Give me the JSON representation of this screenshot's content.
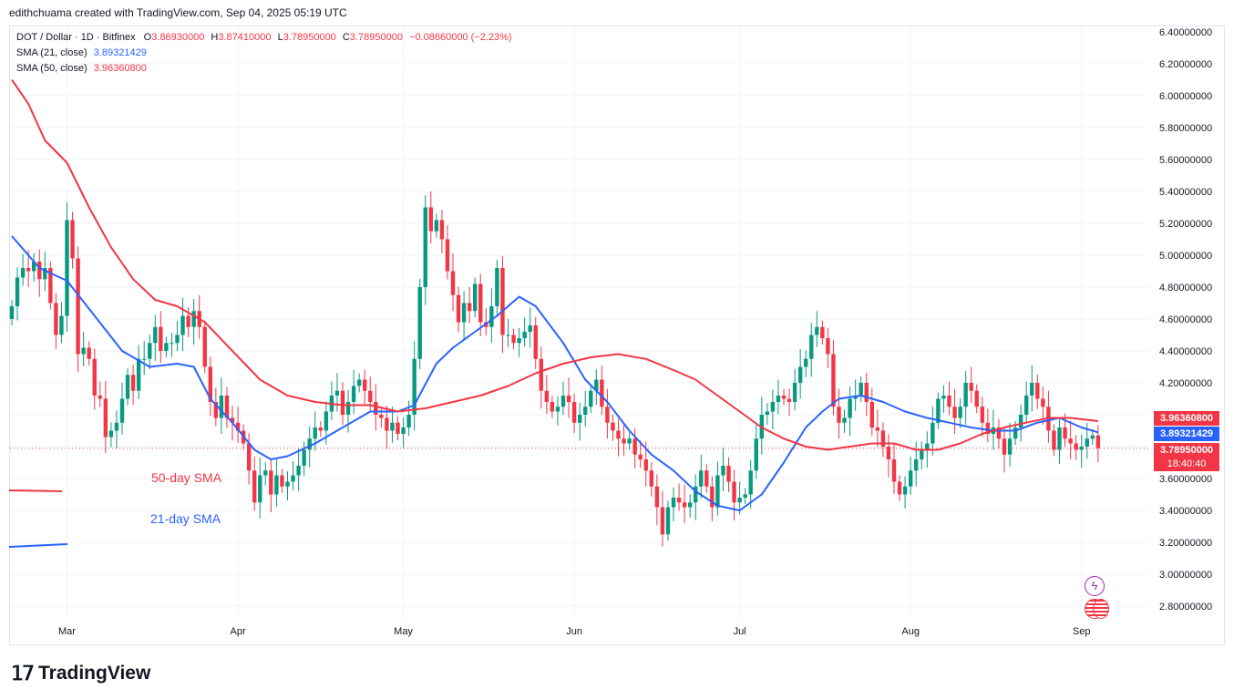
{
  "header": {
    "credit": "edithchuama created with TradingView.com, Sep 04, 2025 05:19 UTC"
  },
  "legend": {
    "symbol": "DOT / Dollar · 1D · Bitfinex",
    "o_label": "O",
    "o": "3.86930000",
    "h_label": "H",
    "h": "3.87410000",
    "l_label": "L",
    "l": "3.78950000",
    "c_label": "C",
    "c": "3.78950000",
    "change": "−0.08660000 (−2.23%)",
    "sma21_label": "SMA (21, close)",
    "sma21": "3.89321429",
    "sma50_label": "SMA (50, close)",
    "sma50": "3.96360800"
  },
  "tags": {
    "sma50": "3.96360800",
    "sma21": "3.89321429",
    "price": "3.78950000",
    "countdown": "18:40:40"
  },
  "annotations": {
    "sma50": "50-day SMA",
    "sma21": "21-day SMA"
  },
  "brand": {
    "name": "TradingView"
  },
  "colors": {
    "up": "#089981",
    "down": "#f23645",
    "sma50": "#f23645",
    "sma21": "#2962ff",
    "sma21_tag": "#2962ff"
  },
  "chart_data": {
    "type": "candlestick",
    "title": "DOT / Dollar · 1D · Bitfinex",
    "ylim": [
      2.7,
      6.48
    ],
    "y_ticks": [
      "6.40000000",
      "6.20000000",
      "6.00000000",
      "5.80000000",
      "5.60000000",
      "5.40000000",
      "5.20000000",
      "5.00000000",
      "4.80000000",
      "4.60000000",
      "4.40000000",
      "4.20000000",
      "4.00000000",
      "3.80000000",
      "3.60000000",
      "3.40000000",
      "3.20000000",
      "3.00000000",
      "2.80000000"
    ],
    "y_tick_values": [
      6.4,
      6.2,
      6.0,
      5.8,
      5.6,
      5.4,
      5.2,
      5.0,
      4.8,
      4.6,
      4.4,
      4.2,
      4.0,
      3.8,
      3.6,
      3.4,
      3.2,
      3.0,
      2.8
    ],
    "x_labels": [
      {
        "label": "Mar",
        "index": 10
      },
      {
        "label": "Apr",
        "index": 41
      },
      {
        "label": "May",
        "index": 71
      },
      {
        "label": "Jun",
        "index": 102
      },
      {
        "label": "Jul",
        "index": 132
      },
      {
        "label": "Aug",
        "index": 163
      },
      {
        "label": "Sep",
        "index": 194
      }
    ],
    "closes": [
      4.68,
      4.86,
      4.92,
      4.9,
      4.96,
      4.85,
      4.92,
      4.7,
      4.5,
      4.62,
      5.22,
      4.98,
      4.38,
      4.42,
      4.35,
      4.12,
      4.1,
      3.86,
      3.9,
      3.95,
      4.1,
      4.25,
      4.15,
      4.35,
      4.35,
      4.45,
      4.55,
      4.4,
      4.45,
      4.45,
      4.5,
      4.62,
      4.55,
      4.65,
      4.55,
      4.3,
      4.08,
      3.98,
      4.12,
      3.98,
      3.95,
      3.9,
      3.82,
      3.65,
      3.45,
      3.62,
      3.65,
      3.5,
      3.62,
      3.55,
      3.58,
      3.62,
      3.68,
      3.78,
      3.85,
      3.92,
      3.9,
      4.02,
      4.12,
      4.15,
      4.0,
      4.08,
      4.18,
      4.22,
      4.15,
      4.08,
      4.0,
      3.98,
      3.9,
      3.95,
      3.88,
      3.92,
      4.0,
      4.35,
      4.8,
      5.3,
      5.15,
      5.22,
      5.1,
      4.9,
      4.75,
      4.58,
      4.7,
      4.65,
      4.82,
      4.58,
      4.55,
      4.68,
      4.92,
      4.5,
      4.5,
      4.45,
      4.48,
      4.52,
      4.56,
      4.35,
      4.15,
      4.08,
      4.02,
      4.05,
      4.12,
      4.08,
      3.95,
      4.0,
      4.05,
      4.15,
      4.22,
      4.05,
      3.95,
      3.9,
      3.85,
      3.82,
      3.85,
      3.75,
      3.72,
      3.65,
      3.55,
      3.42,
      3.25,
      3.42,
      3.48,
      3.45,
      3.42,
      3.45,
      3.55,
      3.65,
      3.55,
      3.42,
      3.62,
      3.68,
      3.58,
      3.45,
      3.48,
      3.5,
      3.65,
      3.85,
      4.0,
      4.02,
      4.08,
      4.12,
      4.1,
      4.08,
      4.2,
      4.3,
      4.35,
      4.5,
      4.55,
      4.48,
      4.38,
      4.05,
      3.95,
      3.98,
      4.1,
      4.12,
      4.2,
      4.08,
      3.92,
      3.9,
      3.8,
      3.72,
      3.58,
      3.5,
      3.55,
      3.65,
      3.72,
      3.78,
      3.82,
      3.95,
      4.1,
      4.12,
      4.05,
      3.98,
      4.05,
      4.2,
      4.15,
      4.05,
      3.95,
      3.88,
      3.92,
      3.85,
      3.75,
      3.85,
      3.92,
      4.0,
      4.12,
      4.2,
      4.1,
      4.05,
      3.9,
      3.78,
      3.92,
      3.85,
      3.82,
      3.78,
      3.8,
      3.85,
      3.87,
      3.79
    ],
    "series": [
      {
        "name": "SMA (21, close)",
        "color": "#2962ff",
        "points": [
          [
            0,
            5.12
          ],
          [
            5,
            4.92
          ],
          [
            10,
            4.84
          ],
          [
            15,
            4.62
          ],
          [
            20,
            4.4
          ],
          [
            25,
            4.3
          ],
          [
            30,
            4.32
          ],
          [
            33,
            4.3
          ],
          [
            36,
            4.1
          ],
          [
            40,
            3.95
          ],
          [
            44,
            3.78
          ],
          [
            47,
            3.72
          ],
          [
            50,
            3.74
          ],
          [
            55,
            3.82
          ],
          [
            60,
            3.92
          ],
          [
            65,
            4.02
          ],
          [
            70,
            4.02
          ],
          [
            73,
            4.06
          ],
          [
            77,
            4.32
          ],
          [
            80,
            4.42
          ],
          [
            84,
            4.52
          ],
          [
            88,
            4.62
          ],
          [
            92,
            4.74
          ],
          [
            95,
            4.68
          ],
          [
            100,
            4.45
          ],
          [
            104,
            4.22
          ],
          [
            108,
            4.08
          ],
          [
            112,
            3.9
          ],
          [
            116,
            3.75
          ],
          [
            120,
            3.65
          ],
          [
            124,
            3.52
          ],
          [
            128,
            3.43
          ],
          [
            132,
            3.4
          ],
          [
            136,
            3.5
          ],
          [
            140,
            3.7
          ],
          [
            144,
            3.92
          ],
          [
            147,
            4.02
          ],
          [
            150,
            4.1
          ],
          [
            154,
            4.12
          ],
          [
            158,
            4.08
          ],
          [
            162,
            4.02
          ],
          [
            166,
            3.98
          ],
          [
            170,
            3.95
          ],
          [
            174,
            3.92
          ],
          [
            178,
            3.9
          ],
          [
            182,
            3.9
          ],
          [
            186,
            3.95
          ],
          [
            190,
            3.98
          ],
          [
            194,
            3.92
          ],
          [
            197,
            3.89
          ]
        ]
      },
      {
        "name": "SMA (50, close)",
        "color": "#f23645",
        "points": [
          [
            0,
            6.1
          ],
          [
            3,
            5.95
          ],
          [
            6,
            5.72
          ],
          [
            10,
            5.58
          ],
          [
            14,
            5.3
          ],
          [
            18,
            5.05
          ],
          [
            22,
            4.85
          ],
          [
            26,
            4.72
          ],
          [
            30,
            4.68
          ],
          [
            35,
            4.58
          ],
          [
            40,
            4.4
          ],
          [
            45,
            4.22
          ],
          [
            50,
            4.12
          ],
          [
            55,
            4.08
          ],
          [
            60,
            4.06
          ],
          [
            65,
            4.06
          ],
          [
            70,
            4.02
          ],
          [
            75,
            4.04
          ],
          [
            80,
            4.08
          ],
          [
            85,
            4.12
          ],
          [
            90,
            4.18
          ],
          [
            95,
            4.26
          ],
          [
            100,
            4.32
          ],
          [
            105,
            4.36
          ],
          [
            110,
            4.38
          ],
          [
            115,
            4.35
          ],
          [
            120,
            4.28
          ],
          [
            124,
            4.22
          ],
          [
            128,
            4.12
          ],
          [
            132,
            4.02
          ],
          [
            136,
            3.92
          ],
          [
            140,
            3.85
          ],
          [
            144,
            3.8
          ],
          [
            148,
            3.78
          ],
          [
            152,
            3.8
          ],
          [
            156,
            3.82
          ],
          [
            160,
            3.82
          ],
          [
            164,
            3.78
          ],
          [
            168,
            3.78
          ],
          [
            172,
            3.82
          ],
          [
            176,
            3.88
          ],
          [
            180,
            3.92
          ],
          [
            184,
            3.95
          ],
          [
            188,
            3.98
          ],
          [
            192,
            3.98
          ],
          [
            197,
            3.96
          ]
        ]
      }
    ],
    "current_price": 3.7895
  }
}
